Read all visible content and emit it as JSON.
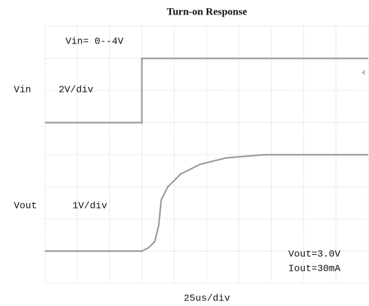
{
  "chart_data": [
    {
      "type": "line",
      "title": "Turn-on Response",
      "x_label": "25us/div",
      "annotations": [
        "Vin= 0--4V",
        "Vin",
        "2V/div"
      ],
      "xlim": [
        0,
        250
      ],
      "xticks": [
        0,
        25,
        50,
        75,
        100,
        125,
        150,
        175,
        200,
        225,
        250
      ],
      "ylim": [
        -10,
        6
      ],
      "yticks": [
        -10,
        -8,
        -6,
        -4,
        -2,
        0,
        2,
        4,
        6
      ],
      "grid": true,
      "series": [
        {
          "name": "Vin",
          "color": "#999999",
          "x": [
            0,
            75,
            75,
            250
          ],
          "values": [
            0,
            0,
            4,
            4
          ]
        }
      ]
    },
    {
      "type": "line",
      "annotations": [
        "Vout",
        "1V/div",
        "Vout=3.0V",
        "Iout=30mA"
      ],
      "xlim": [
        0,
        250
      ],
      "xticks": [
        0,
        25,
        50,
        75,
        100,
        125,
        150,
        175,
        200,
        225,
        250
      ],
      "ylim": [
        -1,
        7
      ],
      "yticks": [
        -1,
        0,
        1,
        2,
        3,
        4,
        5,
        6,
        7
      ],
      "grid": true,
      "series": [
        {
          "name": "Vout",
          "color": "#999999",
          "x": [
            0,
            75,
            80,
            85,
            88,
            90,
            95,
            105,
            120,
            140,
            170,
            250
          ],
          "values": [
            0,
            0,
            0.1,
            0.3,
            0.8,
            1.6,
            2.0,
            2.4,
            2.7,
            2.9,
            3.0,
            3.0
          ]
        }
      ]
    }
  ]
}
